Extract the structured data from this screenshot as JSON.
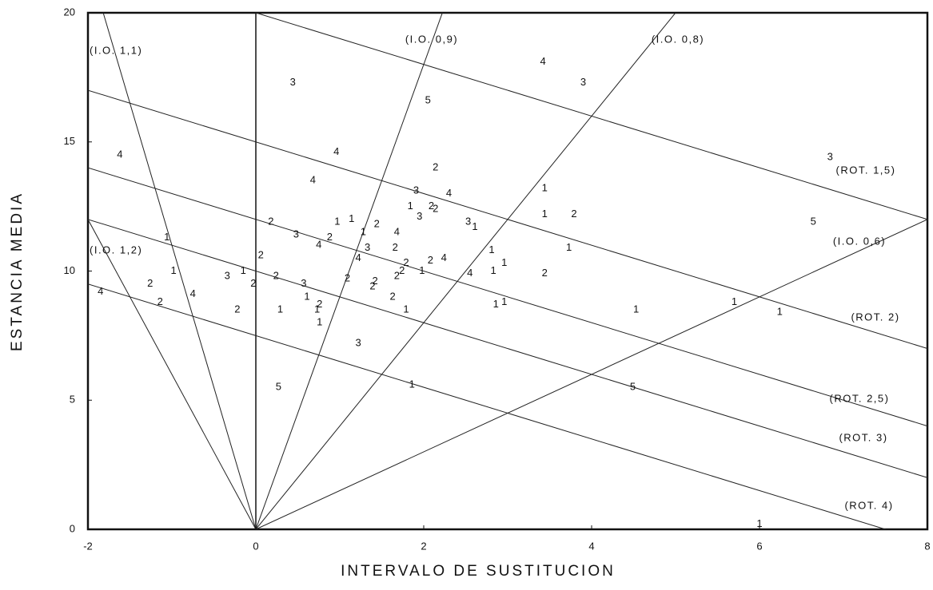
{
  "chart_data": {
    "type": "scatter",
    "xlabel": "INTERVALO DE SUSTITUCION",
    "ylabel": "ESTANCIA MEDIA",
    "xlim": [
      -2,
      8
    ],
    "ylim": [
      0,
      20
    ],
    "xticks": [
      -2,
      0,
      2,
      4,
      6,
      8
    ],
    "yticks": [
      0,
      5,
      10,
      15,
      20
    ],
    "x": [
      0.44,
      3.42,
      3.9,
      2.05,
      -1.62,
      0.96,
      2.14,
      0.68,
      1.91,
      2.3,
      3.44,
      6.84,
      1.84,
      2.09,
      2.14,
      1.95,
      3.44,
      3.79,
      0.18,
      0.97,
      1.14,
      1.44,
      2.53,
      2.61,
      6.64,
      1.28,
      1.68,
      0.48,
      0.88,
      -1.06,
      0.75,
      1.33,
      1.66,
      2.81,
      3.73,
      0.06,
      1.22,
      2.08,
      2.24,
      1.79,
      2.96,
      -0.98,
      1.74,
      1.98,
      2.55,
      2.83,
      3.44,
      -0.15,
      -0.34,
      0.24,
      -0.03,
      1.09,
      1.68,
      1.42,
      1.39,
      0.57,
      -1.26,
      -1.85,
      -0.75,
      0.61,
      1.63,
      -1.14,
      0.76,
      2.86,
      2.96,
      5.7,
      -0.22,
      0.29,
      0.73,
      1.79,
      4.53,
      6.24,
      0.76,
      1.22,
      0.27,
      1.86,
      4.49,
      6.0
    ],
    "values": [
      17.3,
      18.1,
      17.3,
      16.6,
      14.5,
      14.6,
      14.0,
      13.5,
      13.1,
      13.0,
      13.2,
      14.4,
      12.5,
      12.5,
      12.4,
      12.1,
      12.2,
      12.2,
      11.9,
      11.9,
      12.0,
      11.8,
      11.9,
      11.7,
      11.9,
      11.5,
      11.5,
      11.4,
      11.3,
      11.3,
      11.0,
      10.9,
      10.9,
      10.8,
      10.9,
      10.6,
      10.5,
      10.4,
      10.5,
      10.3,
      10.3,
      10.0,
      10.0,
      10.0,
      9.9,
      10.0,
      9.9,
      10.0,
      9.8,
      9.8,
      9.5,
      9.7,
      9.8,
      9.6,
      9.4,
      9.5,
      9.5,
      9.2,
      9.1,
      9.0,
      9.0,
      8.8,
      8.7,
      8.7,
      8.8,
      8.8,
      8.5,
      8.5,
      8.5,
      8.5,
      8.5,
      8.4,
      8.0,
      7.2,
      5.5,
      5.6,
      5.5,
      0.2
    ],
    "point_labels": [
      "3",
      "4",
      "3",
      "5",
      "4",
      "4",
      "2",
      "4",
      "3",
      "4",
      "1",
      "3",
      "1",
      "2",
      "2",
      "3",
      "1",
      "2",
      "2",
      "1",
      "1",
      "2",
      "3",
      "1",
      "5",
      "1",
      "4",
      "3",
      "2",
      "1",
      "4",
      "3",
      "2",
      "1",
      "1",
      "2",
      "4",
      "2",
      "4",
      "2",
      "1",
      "1",
      "2",
      "1",
      "4",
      "1",
      "2",
      "1",
      "3",
      "2",
      "2",
      "2",
      "2",
      "2",
      "2",
      "3",
      "2",
      "4",
      "4",
      "1",
      "2",
      "2",
      "2",
      "1",
      "1",
      "1",
      "2",
      "1",
      "1",
      "1",
      "1",
      "1",
      "1",
      "3",
      "5",
      "1",
      "5",
      "1"
    ],
    "occupancy_lines": [
      {
        "label": "(I.O. 1,1)",
        "value": 1.1
      },
      {
        "label": "(I.O. 0,9)",
        "value": 0.9
      },
      {
        "label": "(I.O. 0,8)",
        "value": 0.8
      },
      {
        "label": "(I.O. 0,6)",
        "value": 0.6
      },
      {
        "label": "(I.O. 1,2)",
        "value": 1.2
      }
    ],
    "rotation_lines": [
      {
        "label": "(ROT. 1,5)",
        "value": 1.5
      },
      {
        "label": "(ROT. 2)",
        "value": 2
      },
      {
        "label": "(ROT. 2,5)",
        "value": 2.5
      },
      {
        "label": "(ROT. 3)",
        "value": 3
      },
      {
        "label": "(ROT. 4)",
        "value": 4
      }
    ]
  }
}
